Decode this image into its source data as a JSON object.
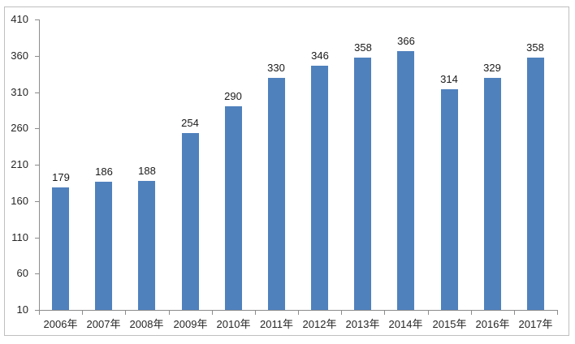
{
  "chart_data": {
    "type": "bar",
    "title": "",
    "xlabel": "",
    "ylabel": "",
    "categories": [
      "2006年",
      "2007年",
      "2008年",
      "2009年",
      "2010年",
      "2011年",
      "2012年",
      "2013年",
      "2014年",
      "2015年",
      "2016年",
      "2017年"
    ],
    "values": [
      179,
      186,
      188,
      254,
      290,
      330,
      346,
      358,
      366,
      314,
      329,
      358
    ],
    "yticks": [
      10,
      60,
      110,
      160,
      210,
      260,
      310,
      360,
      410
    ],
    "ylim": [
      10,
      410
    ],
    "grid": false,
    "legend": null,
    "data_labels_shown": true,
    "colors": {
      "bar_fill": "#4f81bd",
      "axis_line": "#8c8c8c",
      "tick_label": "#262626",
      "data_label": "#1a1a1a",
      "frame_border": "#bfbfbf",
      "background": "#ffffff"
    }
  }
}
